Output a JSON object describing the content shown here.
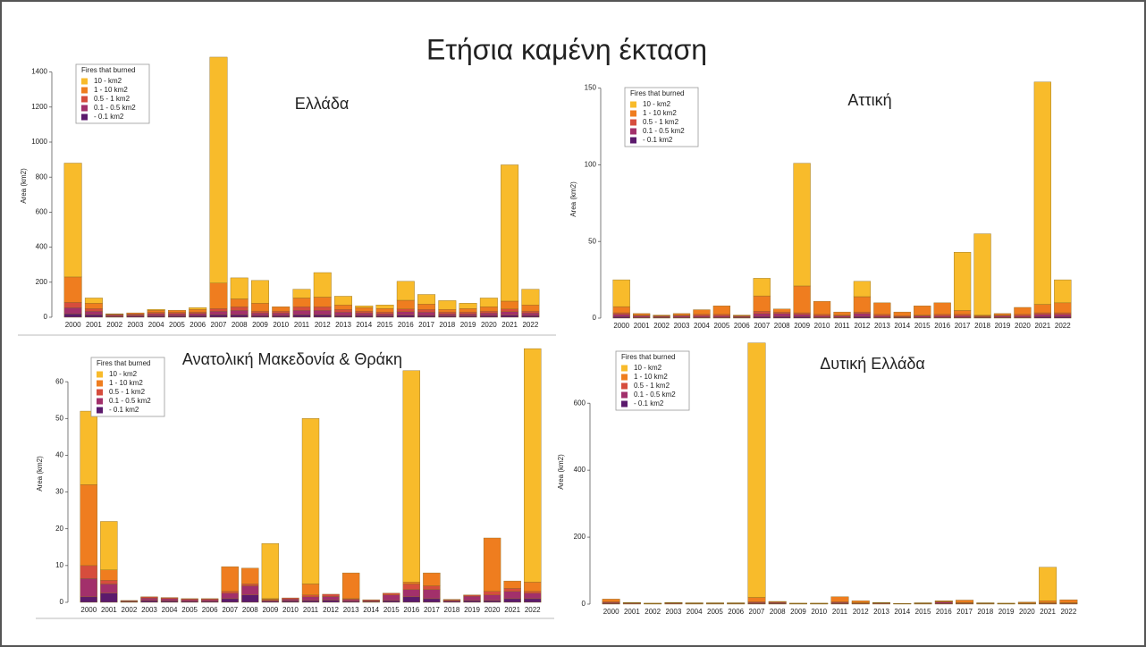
{
  "title": "Ετήσια καμένη έκταση",
  "chart_data": [
    {
      "type": "bar",
      "stacked": true,
      "title": "Ελλάδα",
      "y_label": "Area (km2)",
      "legend_title": "Fires that burned",
      "categories": [
        "2000",
        "2001",
        "2002",
        "2003",
        "2004",
        "2005",
        "2006",
        "2007",
        "2008",
        "2009",
        "2010",
        "2011",
        "2012",
        "2013",
        "2014",
        "2015",
        "2016",
        "2017",
        "2018",
        "2019",
        "2020",
        "2021",
        "2022"
      ],
      "ylim": [
        0,
        1500
      ],
      "yticks": [
        0,
        200,
        400,
        600,
        800,
        1000,
        1200,
        1400
      ],
      "series": [
        {
          "name": "10 - km2",
          "color": "#f8bb2b",
          "values": [
            650,
            30,
            0,
            0,
            5,
            0,
            10,
            1290,
            120,
            130,
            0,
            50,
            140,
            50,
            10,
            20,
            108,
            55,
            50,
            30,
            50,
            778,
            90
          ]
        },
        {
          "name": "1 - 10 km2",
          "color": "#ef7d1f",
          "values": [
            145,
            30,
            3,
            6,
            12,
            12,
            15,
            145,
            45,
            45,
            25,
            50,
            55,
            25,
            20,
            20,
            50,
            30,
            15,
            20,
            25,
            45,
            35
          ]
        },
        {
          "name": "0.5 - 1 km2",
          "color": "#d64d3d",
          "values": [
            30,
            15,
            4,
            5,
            8,
            8,
            8,
            15,
            20,
            10,
            10,
            20,
            20,
            15,
            10,
            10,
            15,
            15,
            10,
            10,
            10,
            15,
            10
          ]
        },
        {
          "name": "0.1 - 0.5 km2",
          "color": "#a2306b",
          "values": [
            35,
            20,
            8,
            8,
            12,
            12,
            12,
            20,
            25,
            15,
            15,
            25,
            25,
            20,
            15,
            12,
            20,
            20,
            12,
            12,
            15,
            20,
            15
          ]
        },
        {
          "name": "- 0.1 km2",
          "color": "#5b1a6c",
          "values": [
            20,
            15,
            5,
            6,
            8,
            8,
            10,
            15,
            15,
            10,
            10,
            15,
            15,
            10,
            10,
            8,
            12,
            10,
            8,
            8,
            10,
            12,
            10
          ]
        }
      ]
    },
    {
      "type": "bar",
      "stacked": true,
      "title": "Αττική",
      "y_label": "Area (km2)",
      "legend_title": "Fires that burned",
      "categories": [
        "2000",
        "2001",
        "2002",
        "2003",
        "2004",
        "2005",
        "2006",
        "2007",
        "2008",
        "2009",
        "2010",
        "2011",
        "2012",
        "2013",
        "2014",
        "2015",
        "2016",
        "2017",
        "2018",
        "2019",
        "2020",
        "2021",
        "2022"
      ],
      "ylim": [
        0,
        155
      ],
      "yticks": [
        0,
        50,
        100,
        150
      ],
      "series": [
        {
          "name": "10 - km2",
          "color": "#f8bb2b",
          "values": [
            17.5,
            0,
            0,
            0,
            0,
            0,
            0,
            11.5,
            0,
            80,
            0,
            0,
            10,
            0,
            0,
            0,
            0,
            38,
            53,
            0,
            0,
            145,
            15
          ]
        },
        {
          "name": "1 - 10 km2",
          "color": "#ef7d1f",
          "values": [
            4,
            1,
            0.5,
            1,
            3,
            5.5,
            0.5,
            10,
            2,
            17.5,
            8.5,
            2,
            10,
            7.5,
            2.5,
            6,
            7.5,
            2.5,
            0.5,
            1,
            4.5,
            5.5,
            6.5
          ]
        },
        {
          "name": "0.5 - 1 km2",
          "color": "#d64d3d",
          "values": [
            1,
            0.5,
            0.3,
            0.5,
            1,
            1,
            0.3,
            1.5,
            1,
            1,
            1,
            0.5,
            1,
            1,
            0.5,
            0.5,
            1,
            1,
            0.5,
            0.5,
            1,
            1,
            1
          ]
        },
        {
          "name": "0.1 - 0.5 km2",
          "color": "#a2306b",
          "values": [
            1.5,
            1,
            0.7,
            1,
            1,
            1,
            0.7,
            2,
            2,
            1.5,
            1,
            1,
            2,
            1,
            0.5,
            1,
            1,
            1,
            0.5,
            1,
            1,
            1.5,
            1.5
          ]
        },
        {
          "name": "- 0.1 km2",
          "color": "#5b1a6c",
          "values": [
            1,
            0.5,
            0.5,
            0.5,
            0.5,
            0.5,
            0.5,
            1,
            1,
            1,
            0.5,
            0.5,
            1,
            0.5,
            0.5,
            0.5,
            0.5,
            0.5,
            0.5,
            0.5,
            0.5,
            1,
            1
          ]
        }
      ]
    },
    {
      "type": "bar",
      "stacked": true,
      "title": "Ανατολική Μακεδονία & Θράκη",
      "y_label": "Area (km2)",
      "legend_title": "Fires that burned",
      "categories": [
        "2000",
        "2001",
        "2002",
        "2003",
        "2004",
        "2005",
        "2006",
        "2007",
        "2008",
        "2009",
        "2010",
        "2011",
        "2012",
        "2013",
        "2014",
        "2015",
        "2016",
        "2017",
        "2018",
        "2019",
        "2020",
        "2021",
        "2022"
      ],
      "ylim": [
        0,
        70
      ],
      "yticks": [
        0,
        10,
        20,
        30,
        40,
        50,
        60
      ],
      "series": [
        {
          "name": "10 - km2",
          "color": "#f8bb2b",
          "values": [
            20,
            13.2,
            0,
            0,
            0,
            0,
            0,
            0,
            0,
            15,
            0,
            45,
            0,
            0,
            0,
            0,
            57.5,
            0,
            0,
            0,
            0,
            0,
            63.5
          ]
        },
        {
          "name": "1 - 10 km2",
          "color": "#ef7d1f",
          "values": [
            22,
            2.8,
            0,
            0,
            0,
            0,
            0,
            6.7,
            4.3,
            0.2,
            0,
            3,
            0,
            7,
            0,
            0,
            0.5,
            3.5,
            0,
            0,
            14.5,
            2,
            2.5
          ]
        },
        {
          "name": "0.5 - 1 km2",
          "color": "#d64d3d",
          "values": [
            3.5,
            1,
            0.1,
            0.3,
            0.3,
            0.2,
            0.2,
            0.5,
            0.5,
            0.2,
            0.3,
            0.5,
            0.6,
            0.2,
            0.2,
            0.5,
            1.5,
            1,
            0.2,
            0.3,
            1,
            0.8,
            0.5
          ]
        },
        {
          "name": "0.1 - 0.5 km2",
          "color": "#a2306b",
          "values": [
            5,
            2.5,
            0.2,
            0.7,
            0.6,
            0.5,
            0.5,
            1.5,
            2.5,
            0.3,
            0.5,
            1,
            1,
            0.5,
            0.3,
            1.5,
            2,
            2.5,
            0.3,
            1.2,
            1.5,
            2,
            1.5
          ]
        },
        {
          "name": "- 0.1 km2",
          "color": "#5b1a6c",
          "values": [
            1.5,
            2.5,
            0.2,
            0.5,
            0.4,
            0.3,
            0.3,
            1,
            2,
            0.3,
            0.4,
            0.5,
            0.6,
            0.3,
            0.2,
            0.5,
            1.5,
            1,
            0.3,
            0.5,
            0.5,
            1,
            1
          ]
        }
      ]
    },
    {
      "type": "bar",
      "stacked": true,
      "title": "Δυτική Ελλάδα",
      "y_label": "Area (km2)",
      "legend_title": "Fires that burned",
      "categories": [
        "2000",
        "2001",
        "2002",
        "2003",
        "2004",
        "2005",
        "2006",
        "2007",
        "2008",
        "2009",
        "2010",
        "2011",
        "2012",
        "2013",
        "2014",
        "2015",
        "2016",
        "2017",
        "2018",
        "2019",
        "2020",
        "2021",
        "2022"
      ],
      "ylim": [
        0,
        790
      ],
      "yticks": [
        0,
        200,
        400,
        600
      ],
      "series": [
        {
          "name": "10 - km2",
          "color": "#f8bb2b",
          "values": [
            0,
            0,
            0,
            0,
            0,
            0,
            0,
            760,
            0,
            0,
            0,
            0,
            0,
            0,
            0,
            0,
            0,
            0,
            0,
            0,
            0,
            100,
            0
          ]
        },
        {
          "name": "1 - 10 km2",
          "color": "#ef7d1f",
          "values": [
            8,
            1,
            1,
            1,
            1,
            1,
            1,
            13,
            2,
            1,
            1,
            15,
            6,
            1,
            0.5,
            1,
            2,
            7,
            1,
            1,
            2.5,
            6,
            9
          ]
        },
        {
          "name": "0.5 - 1 km2",
          "color": "#d64d3d",
          "values": [
            2,
            1,
            0.5,
            1,
            0.5,
            0.5,
            0.5,
            2,
            1,
            0.5,
            0.5,
            2,
            1,
            1,
            0.5,
            0.5,
            2,
            2,
            0.5,
            0.5,
            1,
            1,
            1
          ]
        },
        {
          "name": "0.1 - 0.5 km2",
          "color": "#a2306b",
          "values": [
            3,
            2,
            1,
            2,
            1.5,
            1.5,
            1.5,
            3,
            3,
            1,
            1,
            3,
            2,
            2,
            0.5,
            1.5,
            4,
            2,
            1.5,
            1,
            1.5,
            2,
            2
          ]
        },
        {
          "name": "- 0.1 km2",
          "color": "#5b1a6c",
          "values": [
            2,
            1,
            0.5,
            1,
            1,
            1,
            1,
            2,
            2,
            0.5,
            0.5,
            2,
            1,
            1,
            0.5,
            1,
            2,
            1,
            1,
            0.5,
            1,
            1,
            1
          ]
        }
      ]
    }
  ]
}
